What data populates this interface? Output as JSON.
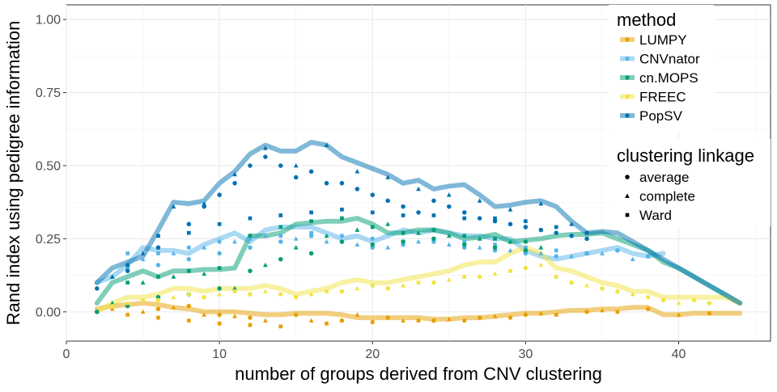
{
  "chart_data": {
    "type": "line",
    "title": "",
    "xlabel": "number of groups derived from CNV clustering",
    "ylabel": "Rand index using pedigree information",
    "xlim": [
      0,
      46
    ],
    "ylim": [
      -0.1,
      1.05
    ],
    "x_ticks": [
      0,
      10,
      20,
      30,
      40
    ],
    "x_tick_labels": [
      "0",
      "10",
      "20",
      "30",
      "40"
    ],
    "y_ticks": [
      0,
      0.25,
      0.5,
      0.75,
      1
    ],
    "y_tick_labels": [
      "0.00",
      "0.25",
      "0.50",
      "0.75",
      "1.00"
    ],
    "grid": true,
    "legend_position": "top-right",
    "legend_method_title": "method",
    "legend_linkage_title": "clustering linkage",
    "linkages": [
      {
        "name": "average",
        "shape": "circle"
      },
      {
        "name": "complete",
        "shape": "triangle"
      },
      {
        "name": "Ward",
        "shape": "square"
      }
    ],
    "series": [
      {
        "name": "LUMPY",
        "color": "#E69F00",
        "line": {
          "x": [
            2,
            3,
            4,
            5,
            6,
            7,
            8,
            9,
            10,
            11,
            12,
            13,
            14,
            15,
            16,
            17,
            18,
            19,
            20,
            21,
            22,
            23,
            24,
            25,
            26,
            27,
            28,
            29,
            30,
            31,
            32,
            33,
            34,
            35,
            36,
            37,
            38,
            39,
            40,
            41,
            42,
            43,
            44
          ],
          "y": [
            0.01,
            0.02,
            0.025,
            0.03,
            0.025,
            0.015,
            0.01,
            0.0,
            0.0,
            0.0,
            -0.005,
            -0.01,
            -0.01,
            -0.005,
            -0.005,
            -0.005,
            -0.01,
            -0.02,
            -0.02,
            -0.02,
            -0.02,
            -0.02,
            -0.025,
            -0.025,
            -0.02,
            -0.02,
            -0.015,
            -0.01,
            -0.005,
            -0.005,
            0.0,
            0.005,
            0.005,
            0.01,
            0.01,
            0.015,
            0.015,
            -0.01,
            -0.01,
            -0.005,
            -0.005,
            -0.005,
            -0.005
          ]
        },
        "points": {
          "average": {
            "x": [
              2,
              4,
              6,
              8,
              10,
              12,
              15,
              18,
              21,
              24,
              27,
              30,
              34,
              38
            ],
            "y": [
              0.0,
              0.02,
              0.01,
              0.02,
              -0.01,
              -0.02,
              -0.01,
              -0.03,
              -0.02,
              -0.03,
              -0.02,
              -0.01,
              0.0,
              0.01
            ]
          },
          "complete": {
            "x": [
              3,
              5,
              7,
              9,
              11,
              13,
              16,
              19,
              22,
              25,
              28,
              31,
              35,
              40
            ],
            "y": [
              0.01,
              0.0,
              0.015,
              -0.01,
              -0.015,
              -0.03,
              -0.03,
              -0.01,
              -0.03,
              -0.025,
              -0.015,
              -0.005,
              0.005,
              -0.01
            ]
          },
          "Ward": {
            "x": [
              4,
              6,
              8,
              10,
              12,
              14,
              17,
              20,
              23,
              26,
              29,
              32,
              36,
              42
            ],
            "y": [
              -0.01,
              -0.02,
              -0.03,
              -0.04,
              -0.045,
              -0.05,
              -0.04,
              -0.035,
              -0.03,
              -0.03,
              -0.02,
              -0.01,
              0.0,
              -0.005
            ]
          }
        }
      },
      {
        "name": "CNVnator",
        "color": "#56B4E9",
        "line": {
          "x": [
            2,
            3,
            4,
            5,
            6,
            7,
            8,
            9,
            10,
            11,
            12,
            13,
            14,
            15,
            16,
            17,
            18,
            19,
            20,
            21,
            22,
            23,
            24,
            25,
            26,
            27,
            28,
            29,
            30,
            31,
            32,
            33,
            34,
            35,
            36,
            37,
            38,
            39
          ],
          "y": [
            0.1,
            0.12,
            0.16,
            0.22,
            0.21,
            0.21,
            0.2,
            0.23,
            0.25,
            0.27,
            0.24,
            0.28,
            0.29,
            0.29,
            0.29,
            0.27,
            0.25,
            0.26,
            0.24,
            0.26,
            0.28,
            0.27,
            0.28,
            0.27,
            0.26,
            0.26,
            0.25,
            0.25,
            0.21,
            0.19,
            0.18,
            0.19,
            0.2,
            0.21,
            0.22,
            0.2,
            0.19,
            0.2
          ]
        },
        "points": {
          "average": {
            "x": [
              4,
              6,
              8,
              10,
              12,
              14,
              16,
              18,
              20,
              22,
              24,
              26,
              28,
              30,
              32,
              34,
              36,
              38
            ],
            "y": [
              0.15,
              0.16,
              0.18,
              0.2,
              0.22,
              0.24,
              0.26,
              0.24,
              0.22,
              0.23,
              0.24,
              0.22,
              0.21,
              0.2,
              0.19,
              0.2,
              0.21,
              0.19
            ]
          },
          "complete": {
            "x": [
              3,
              5,
              7,
              9,
              11,
              13,
              15,
              17,
              19,
              21,
              23,
              25,
              27,
              29,
              31,
              33,
              35,
              37
            ],
            "y": [
              0.12,
              0.18,
              0.2,
              0.22,
              0.24,
              0.26,
              0.25,
              0.24,
              0.23,
              0.22,
              0.24,
              0.23,
              0.22,
              0.21,
              0.2,
              0.19,
              0.2,
              0.18
            ]
          },
          "Ward": {
            "x": [
              4,
              6,
              8,
              10,
              12,
              14,
              16,
              18,
              20,
              22,
              24,
              26,
              28,
              30,
              32,
              34,
              36
            ],
            "y": [
              0.2,
              0.2,
              0.22,
              0.24,
              0.25,
              0.26,
              0.27,
              0.26,
              0.25,
              0.24,
              0.25,
              0.24,
              0.23,
              0.22,
              0.21,
              0.2,
              0.21
            ]
          }
        }
      },
      {
        "name": "cn.MOPS",
        "color": "#009E73",
        "line": {
          "x": [
            2,
            3,
            4,
            5,
            6,
            7,
            8,
            9,
            10,
            11,
            12,
            13,
            14,
            15,
            16,
            17,
            18,
            19,
            20,
            21,
            22,
            23,
            24,
            25,
            26,
            27,
            28,
            29,
            30,
            31,
            32,
            33,
            34,
            35,
            36,
            37,
            38,
            39,
            40,
            41,
            42,
            43,
            44
          ],
          "y": [
            0.03,
            0.1,
            0.12,
            0.14,
            0.12,
            0.14,
            0.14,
            0.145,
            0.145,
            0.15,
            0.26,
            0.26,
            0.27,
            0.3,
            0.305,
            0.31,
            0.31,
            0.32,
            0.3,
            0.27,
            0.27,
            0.28,
            0.28,
            0.27,
            0.25,
            0.255,
            0.265,
            0.24,
            0.245,
            0.25,
            0.26,
            0.265,
            0.265,
            0.27,
            0.25,
            0.23,
            0.21,
            0.17,
            0.15,
            0.12,
            0.09,
            0.06,
            0.03
          ]
        },
        "points": {
          "average": {
            "x": [
              2,
              4,
              6,
              8,
              10,
              12,
              14,
              16,
              18,
              20,
              22,
              24,
              26,
              28,
              30
            ],
            "y": [
              0.0,
              0.02,
              0.05,
              0.06,
              0.08,
              0.14,
              0.18,
              0.2,
              0.24,
              0.23,
              0.24,
              0.25,
              0.23,
              0.22,
              0.21
            ]
          },
          "complete": {
            "x": [
              3,
              5,
              7,
              9,
              11,
              13,
              15,
              17,
              19,
              21,
              23,
              25,
              27,
              29,
              31
            ],
            "y": [
              0.03,
              0.1,
              0.12,
              0.13,
              0.08,
              0.16,
              0.22,
              0.26,
              0.28,
              0.3,
              0.27,
              0.26,
              0.25,
              0.24,
              0.22
            ]
          },
          "Ward": {
            "x": [
              4,
              6,
              8,
              10,
              12,
              14,
              16,
              18,
              20,
              22,
              24,
              26,
              28,
              30
            ],
            "y": [
              0.1,
              0.12,
              0.14,
              0.15,
              0.26,
              0.29,
              0.31,
              0.32,
              0.29,
              0.27,
              0.28,
              0.26,
              0.25,
              0.24
            ]
          }
        }
      },
      {
        "name": "FREEC",
        "color": "#F0E442",
        "line": {
          "x": [
            2,
            3,
            4,
            5,
            6,
            7,
            8,
            9,
            10,
            11,
            12,
            13,
            14,
            15,
            16,
            17,
            18,
            19,
            20,
            21,
            22,
            23,
            24,
            25,
            26,
            27,
            28,
            29,
            30,
            31,
            32,
            33,
            34,
            35,
            36,
            37,
            38,
            39,
            40,
            41,
            42,
            43,
            44
          ],
          "y": [
            0.0,
            0.03,
            0.05,
            0.05,
            0.06,
            0.08,
            0.08,
            0.07,
            0.08,
            0.08,
            0.08,
            0.09,
            0.08,
            0.06,
            0.07,
            0.08,
            0.1,
            0.11,
            0.1,
            0.1,
            0.11,
            0.12,
            0.13,
            0.14,
            0.16,
            0.17,
            0.17,
            0.2,
            0.22,
            0.2,
            0.15,
            0.14,
            0.12,
            0.1,
            0.09,
            0.07,
            0.07,
            0.05,
            0.05,
            0.05,
            0.05,
            0.05,
            0.03
          ]
        },
        "points": {
          "average": {
            "x": [
              3,
              6,
              9,
              12,
              15,
              18,
              21,
              24,
              27,
              30,
              33,
              36,
              39,
              42
            ],
            "y": [
              0.02,
              0.04,
              0.05,
              0.06,
              0.05,
              0.07,
              0.08,
              0.1,
              0.12,
              0.15,
              0.1,
              0.07,
              0.04,
              0.03
            ]
          },
          "complete": {
            "x": [
              4,
              7,
              10,
              13,
              16,
              19,
              22,
              25,
              28,
              31,
              34,
              37,
              40
            ],
            "y": [
              0.03,
              0.05,
              0.06,
              0.07,
              0.06,
              0.08,
              0.09,
              0.11,
              0.13,
              0.16,
              0.09,
              0.06,
              0.03
            ]
          },
          "Ward": {
            "x": [
              5,
              8,
              11,
              14,
              17,
              20,
              23,
              26,
              29,
              32,
              35,
              38,
              41
            ],
            "y": [
              0.04,
              0.06,
              0.07,
              0.06,
              0.07,
              0.09,
              0.1,
              0.12,
              0.14,
              0.12,
              0.08,
              0.05,
              0.04
            ]
          }
        }
      },
      {
        "name": "PopSV",
        "color": "#0072B2",
        "line": {
          "x": [
            2,
            3,
            4,
            5,
            6,
            7,
            8,
            9,
            10,
            11,
            12,
            13,
            14,
            15,
            16,
            17,
            18,
            19,
            20,
            21,
            22,
            23,
            24,
            25,
            26,
            27,
            28,
            29,
            30,
            31,
            32,
            33,
            34,
            35,
            36,
            37,
            38,
            39,
            40,
            41,
            42,
            43,
            44
          ],
          "y": [
            0.1,
            0.15,
            0.17,
            0.19,
            0.28,
            0.375,
            0.37,
            0.38,
            0.44,
            0.48,
            0.54,
            0.57,
            0.55,
            0.55,
            0.58,
            0.57,
            0.53,
            0.51,
            0.49,
            0.47,
            0.44,
            0.45,
            0.42,
            0.43,
            0.435,
            0.4,
            0.36,
            0.365,
            0.375,
            0.38,
            0.36,
            0.31,
            0.27,
            0.275,
            0.27,
            0.24,
            0.21,
            0.18,
            0.15,
            0.12,
            0.09,
            0.06,
            0.03
          ]
        },
        "points": {
          "average": {
            "x": [
              2,
              4,
              6,
              8,
              9,
              10,
              11,
              12,
              13,
              14,
              15,
              16,
              17,
              18,
              19,
              20,
              21,
              22,
              23,
              24,
              25,
              26,
              27,
              28,
              29,
              30,
              31,
              32,
              33,
              34
            ],
            "y": [
              0.08,
              0.14,
              0.22,
              0.3,
              0.36,
              0.4,
              0.44,
              0.5,
              0.53,
              0.5,
              0.46,
              0.48,
              0.44,
              0.44,
              0.42,
              0.4,
              0.38,
              0.36,
              0.34,
              0.38,
              0.36,
              0.34,
              0.32,
              0.31,
              0.3,
              0.29,
              0.28,
              0.27,
              0.26,
              0.25
            ]
          },
          "complete": {
            "x": [
              3,
              5,
              7,
              9,
              11,
              13,
              15,
              17,
              19,
              21,
              23,
              25,
              27,
              29,
              31,
              33
            ],
            "y": [
              0.12,
              0.2,
              0.36,
              0.37,
              0.47,
              0.56,
              0.5,
              0.57,
              0.48,
              0.46,
              0.42,
              0.4,
              0.38,
              0.35,
              0.37,
              0.3
            ]
          },
          "Ward": {
            "x": [
              4,
              6,
              8,
              10,
              12,
              14,
              16,
              18,
              20,
              22,
              24,
              26,
              28,
              30,
              32,
              34
            ],
            "y": [
              0.16,
              0.26,
              0.27,
              0.3,
              0.32,
              0.33,
              0.34,
              0.35,
              0.34,
              0.33,
              0.33,
              0.32,
              0.32,
              0.31,
              0.29,
              0.27
            ]
          }
        }
      }
    ]
  }
}
